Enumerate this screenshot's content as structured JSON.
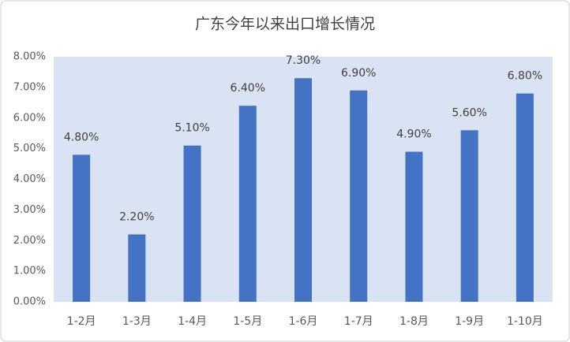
{
  "chart_data": {
    "type": "bar",
    "title": "广东今年以来出口增长情况",
    "categories": [
      "1-2月",
      "1-3月",
      "1-4月",
      "1-5月",
      "1-6月",
      "1-7月",
      "1-8月",
      "1-9月",
      "1-10月"
    ],
    "values": [
      4.8,
      2.2,
      5.1,
      6.4,
      7.3,
      6.9,
      4.9,
      5.6,
      6.8
    ],
    "value_labels": [
      "4.80%",
      "2.20%",
      "5.10%",
      "6.40%",
      "7.30%",
      "6.90%",
      "4.90%",
      "5.60%",
      "6.80%"
    ],
    "color": "#4472c4",
    "ylim": [
      0,
      8
    ],
    "yticks": [
      {
        "value": 0,
        "label": "0.00%"
      },
      {
        "value": 1,
        "label": "1.00%"
      },
      {
        "value": 2,
        "label": "2.00%"
      },
      {
        "value": 3,
        "label": "3.00%"
      },
      {
        "value": 4,
        "label": "4.00%"
      },
      {
        "value": 5,
        "label": "5.00%"
      },
      {
        "value": 6,
        "label": "6.00%"
      },
      {
        "value": 7,
        "label": "7.00%"
      },
      {
        "value": 8,
        "label": "8.00%"
      }
    ],
    "grid": false
  }
}
